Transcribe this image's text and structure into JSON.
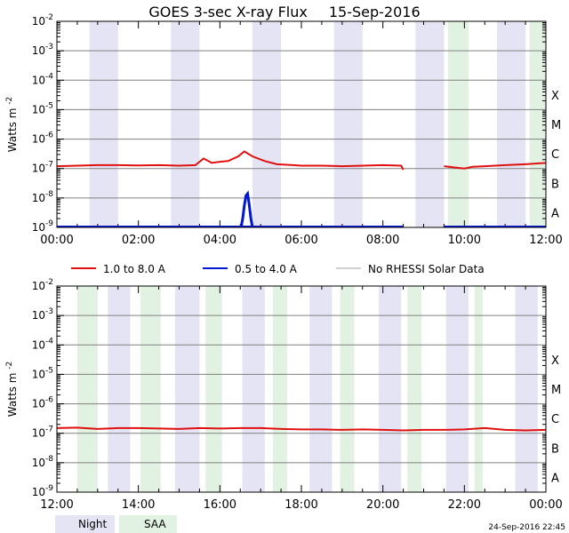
{
  "title": "GOES 3-sec X-ray Flux",
  "date": "15-Sep-2016",
  "timestamp": "24-Sep-2016 22:45",
  "ylabel": "Watts m",
  "ylabel_exp": "-2",
  "bottom_legend": {
    "night": "Night",
    "saa": "SAA"
  },
  "colors": {
    "long": "#e01010",
    "short": "#0018d0",
    "no_rhessi": "#a0a0a0",
    "night": "#e4e4f4",
    "saa": "#e2f2e2",
    "grid": "#808080"
  },
  "chart_data": [
    {
      "type": "line",
      "title": "GOES 3-sec X-ray Flux 15-Sep-2016",
      "ylabel": "Watts m-2",
      "yscale": "log",
      "ylim": [
        1e-09,
        0.01
      ],
      "y_ticks": [
        "-9",
        "-8",
        "-7",
        "-6",
        "-5",
        "-4",
        "-3",
        "-2"
      ],
      "flare_classes": [
        "A",
        "B",
        "C",
        "M",
        "X"
      ],
      "xlim_hours": [
        0,
        12
      ],
      "x_tick_labels": [
        "00:00",
        "02:00",
        "04:00",
        "06:00",
        "08:00",
        "10:00",
        "12:00"
      ],
      "night_bands": [
        [
          0.8,
          1.5
        ],
        [
          2.8,
          3.5
        ],
        [
          4.8,
          5.5
        ],
        [
          6.8,
          7.5
        ],
        [
          8.8,
          9.5
        ],
        [
          10.8,
          11.5
        ]
      ],
      "saa_bands": [
        [
          9.6,
          10.1
        ],
        [
          11.6,
          12.2
        ]
      ],
      "legend": [
        "1.0 to 8.0 A",
        "0.5 to 4.0 A",
        "No RHESSI Solar Data"
      ],
      "series": [
        {
          "name": "1.0 to 8.0 A",
          "x_hours": [
            0,
            0.5,
            1.0,
            1.5,
            2.0,
            2.5,
            3.0,
            3.4,
            3.6,
            3.8,
            4.0,
            4.2,
            4.45,
            4.6,
            4.8,
            5.1,
            5.4,
            5.8,
            6.0,
            6.5,
            7.0,
            7.5,
            8.0,
            8.45,
            8.5
          ],
          "values": [
            1.2e-07,
            1.25e-07,
            1.3e-07,
            1.3e-07,
            1.28e-07,
            1.3e-07,
            1.25e-07,
            1.3e-07,
            2.2e-07,
            1.55e-07,
            1.7e-07,
            1.8e-07,
            2.6e-07,
            3.8e-07,
            2.6e-07,
            1.8e-07,
            1.4e-07,
            1.3e-07,
            1.25e-07,
            1.25e-07,
            1.2e-07,
            1.25e-07,
            1.3e-07,
            1.25e-07,
            9e-08
          ]
        },
        {
          "name": "1.0 to 8.0 A",
          "x_hours": [
            9.5,
            10.0,
            10.2,
            10.5,
            11.0,
            11.5,
            12.0
          ],
          "values": [
            1.2e-07,
            1e-07,
            1.15e-07,
            1.2e-07,
            1.3e-07,
            1.4e-07,
            1.55e-07
          ]
        },
        {
          "name": "0.5 to 4.0 A",
          "x_hours": [
            4.52,
            4.56,
            4.6,
            4.64,
            4.68,
            4.72,
            4.76,
            4.8
          ],
          "values": [
            1e-09,
            2e-09,
            5.5e-09,
            1.2e-08,
            1.4e-08,
            6e-09,
            2e-09,
            1e-09
          ]
        }
      ]
    },
    {
      "type": "line",
      "ylabel": "Watts m-2",
      "yscale": "log",
      "ylim": [
        1e-09,
        0.01
      ],
      "y_ticks": [
        "-9",
        "-8",
        "-7",
        "-6",
        "-5",
        "-4",
        "-3",
        "-2"
      ],
      "flare_classes": [
        "A",
        "B",
        "C",
        "M",
        "X"
      ],
      "xlim_hours": [
        12,
        24
      ],
      "x_tick_labels": [
        "12:00",
        "14:00",
        "16:00",
        "18:00",
        "20:00",
        "22:00",
        "00:00"
      ],
      "night_bands": [
        [
          13.25,
          13.8
        ],
        [
          14.9,
          15.5
        ],
        [
          16.55,
          17.1
        ],
        [
          18.2,
          18.75
        ],
        [
          19.9,
          20.45
        ],
        [
          21.55,
          22.1
        ],
        [
          23.25,
          23.8
        ]
      ],
      "saa_bands": [
        [
          12.5,
          13.0
        ],
        [
          14.05,
          14.55
        ],
        [
          15.65,
          16.05
        ],
        [
          17.3,
          17.65
        ],
        [
          18.95,
          19.3
        ],
        [
          20.6,
          20.95
        ],
        [
          22.25,
          22.45
        ]
      ],
      "series": [
        {
          "name": "1.0 to 8.0 A",
          "x_hours": [
            12.0,
            12.5,
            13.0,
            13.5,
            14.0,
            14.5,
            15.0,
            15.5,
            16.0,
            16.5,
            17.0,
            17.5,
            18.0,
            18.5,
            19.0,
            19.5,
            20.0,
            20.5,
            21.0,
            21.5,
            22.0,
            22.5,
            23.0,
            23.5,
            24.0
          ],
          "values": [
            1.5e-07,
            1.55e-07,
            1.4e-07,
            1.5e-07,
            1.5e-07,
            1.45e-07,
            1.4e-07,
            1.5e-07,
            1.45e-07,
            1.5e-07,
            1.5e-07,
            1.4e-07,
            1.35e-07,
            1.35e-07,
            1.3e-07,
            1.35e-07,
            1.3e-07,
            1.25e-07,
            1.3e-07,
            1.3e-07,
            1.35e-07,
            1.5e-07,
            1.3e-07,
            1.25e-07,
            1.3e-07
          ]
        }
      ]
    }
  ]
}
